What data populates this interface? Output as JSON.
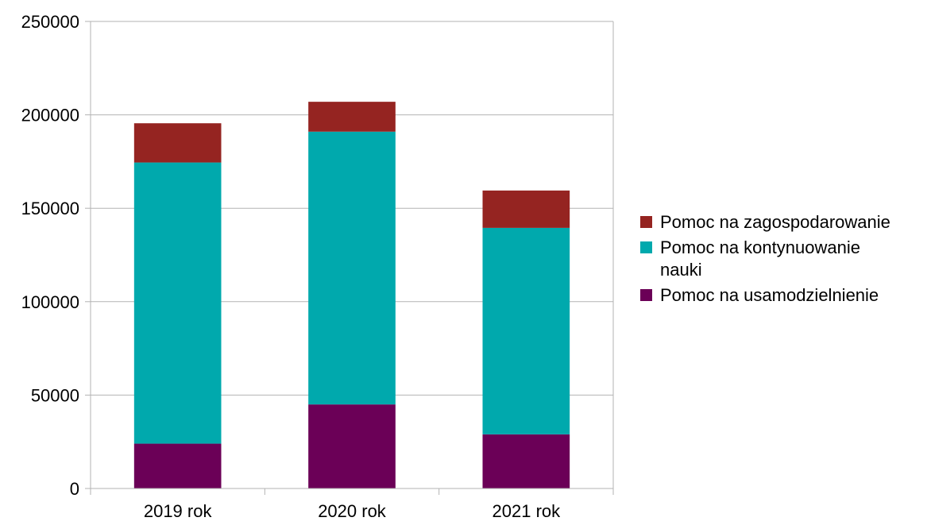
{
  "chart_data": {
    "type": "bar",
    "stacked": true,
    "title": "",
    "xlabel": "",
    "ylabel": "",
    "categories": [
      "2019 rok",
      "2020 rok",
      "2021 rok"
    ],
    "ylim": [
      0,
      250000
    ],
    "yticks": [
      0,
      50000,
      100000,
      150000,
      200000,
      250000
    ],
    "ytick_labels": [
      "0",
      "50000",
      "100000",
      "150000",
      "200000",
      "250000"
    ],
    "grid": true,
    "legend_position": "right",
    "series": [
      {
        "name": "Pomoc na usamodzielnienie",
        "color": "#6b0057",
        "values": [
          24000,
          45000,
          29000
        ]
      },
      {
        "name": "Pomoc na kontynuowanie nauki",
        "color": "#00a9ad",
        "values": [
          150500,
          146000,
          110500
        ]
      },
      {
        "name": "Pomoc na zagospodarowanie",
        "color": "#952421",
        "values": [
          21000,
          16000,
          20000
        ]
      }
    ],
    "legend": [
      {
        "series_index": 2,
        "lines": [
          "Pomoc na zagospodarowanie"
        ]
      },
      {
        "series_index": 1,
        "lines": [
          "Pomoc na kontynuowanie",
          "nauki"
        ]
      },
      {
        "series_index": 0,
        "lines": [
          "Pomoc na usamodzielnienie"
        ]
      }
    ]
  }
}
